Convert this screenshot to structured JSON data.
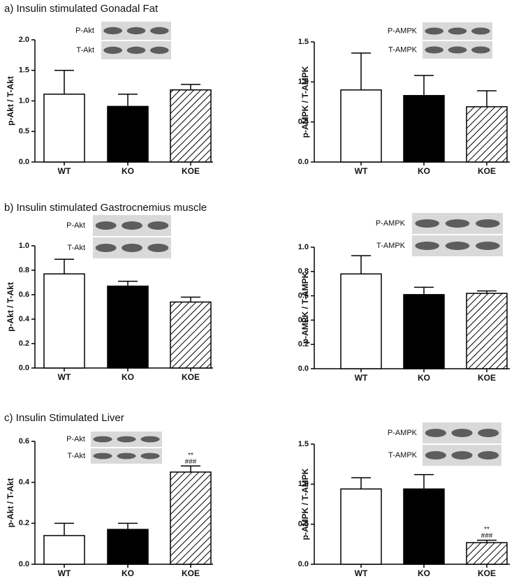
{
  "figure": {
    "panel_titles": [
      "a) Insulin stimulated Gonadal Fat",
      "b) Insulin stimulated Gastrocnemius muscle",
      "c) Insulin Stimulated Liver"
    ]
  },
  "chart_data": [
    {
      "type": "bar",
      "y_label": "p-Akt / T-Akt",
      "blot_labels": [
        "P-Akt",
        "T-Akt"
      ],
      "categories": [
        "WT",
        "KO",
        "KOE"
      ],
      "fills": [
        "open",
        "solid",
        "hatched"
      ],
      "values": [
        1.11,
        0.91,
        1.18
      ],
      "errors": [
        0.39,
        0.2,
        0.09
      ],
      "ylim": [
        0,
        2
      ],
      "yticks": [
        {
          "value": 0,
          "label": "0.0"
        },
        0.5,
        {
          "value": 1,
          "label": "1.0"
        },
        1.5,
        {
          "value": 2,
          "label": "2.0"
        }
      ]
    },
    {
      "type": "bar",
      "y_label": "p-AMPK / T-AMPK",
      "blot_labels": [
        "P-AMPK",
        "T-AMPK"
      ],
      "categories": [
        "WT",
        "KO",
        "KOE"
      ],
      "fills": [
        "open",
        "solid",
        "hatched"
      ],
      "values": [
        0.9,
        0.83,
        0.69
      ],
      "errors": [
        0.46,
        0.25,
        0.2
      ],
      "ylim": [
        0,
        1.5
      ],
      "yticks": [
        {
          "value": 0,
          "label": "0.0"
        },
        0.5,
        {
          "value": 1,
          "label": "1.0"
        },
        1.5
      ]
    },
    {
      "type": "bar",
      "y_label": "p-Akt / T-Akt",
      "blot_labels": [
        "P-Akt",
        "T-Akt"
      ],
      "categories": [
        "WT",
        "KO",
        "KOE"
      ],
      "fills": [
        "open",
        "solid",
        "hatched"
      ],
      "values": [
        0.77,
        0.67,
        0.54
      ],
      "errors": [
        0.12,
        0.04,
        0.04
      ],
      "ylim": [
        0,
        1
      ],
      "yticks": [
        {
          "value": 0,
          "label": "0.0"
        },
        0.2,
        0.4,
        0.6,
        0.8,
        {
          "value": 1,
          "label": "1.0"
        }
      ]
    },
    {
      "type": "bar",
      "y_label": "p-AMPK / T-AMPK",
      "blot_labels": [
        "P-AMPK",
        "T-AMPK"
      ],
      "categories": [
        "WT",
        "KO",
        "KOE"
      ],
      "fills": [
        "open",
        "solid",
        "hatched"
      ],
      "values": [
        0.78,
        0.61,
        0.62
      ],
      "errors": [
        0.15,
        0.06,
        0.02
      ],
      "ylim": [
        0,
        1
      ],
      "yticks": [
        {
          "value": 0,
          "label": "0.0"
        },
        0.2,
        0.4,
        0.6,
        0.8,
        {
          "value": 1,
          "label": "1.0"
        }
      ]
    },
    {
      "type": "bar",
      "y_label": "p-Akt / T-Akt",
      "blot_labels": [
        "P-Akt",
        "T-Akt"
      ],
      "categories": [
        "WT",
        "KO",
        "KOE"
      ],
      "fills": [
        "open",
        "solid",
        "hatched"
      ],
      "values": [
        0.14,
        0.17,
        0.45
      ],
      "errors": [
        0.06,
        0.03,
        0.03
      ],
      "value_annotations": [
        null,
        null,
        [
          "**",
          "###"
        ]
      ],
      "ylim": [
        0,
        0.6
      ],
      "yticks": [
        {
          "value": 0,
          "label": "0.0"
        },
        0.2,
        0.4,
        0.6
      ]
    },
    {
      "type": "bar",
      "y_label": "p-AMPK / T-AMPK",
      "blot_labels": [
        "P-AMPK",
        "T-AMPK"
      ],
      "categories": [
        "WT",
        "KO",
        "KOE"
      ],
      "fills": [
        "open",
        "solid",
        "hatched"
      ],
      "values": [
        0.94,
        0.94,
        0.27
      ],
      "errors": [
        0.14,
        0.18,
        0.03
      ],
      "value_annotations": [
        null,
        null,
        [
          "**",
          "###"
        ]
      ],
      "ylim": [
        0,
        1.5
      ],
      "yticks": [
        {
          "value": 0,
          "label": "0.0"
        },
        0.5,
        {
          "value": 1,
          "label": "1.0"
        },
        1.5
      ]
    }
  ]
}
